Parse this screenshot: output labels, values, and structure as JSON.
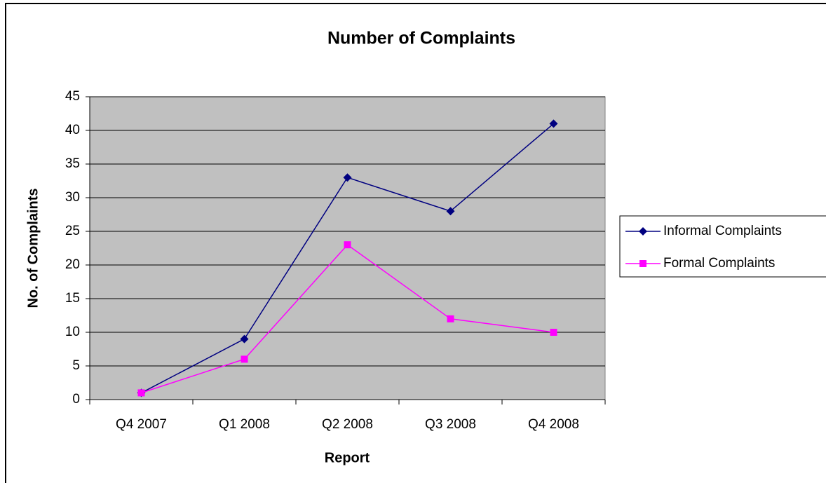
{
  "chart_data": {
    "type": "line",
    "title": "Number of Complaints",
    "x_label": "Report",
    "y_label": "No. of Complaints",
    "categories": [
      "Q4 2007",
      "Q1 2008",
      "Q2 2008",
      "Q3 2008",
      "Q4 2008"
    ],
    "series": [
      {
        "name": "Informal Complaints",
        "color": "#000080",
        "marker": "diamond",
        "values": [
          1,
          9,
          33,
          28,
          41
        ]
      },
      {
        "name": "Formal Complaints",
        "color": "#ff00ff",
        "marker": "square",
        "values": [
          1,
          6,
          23,
          12,
          10
        ]
      }
    ],
    "ylim": [
      0,
      45
    ],
    "yticks": [
      0,
      5,
      10,
      15,
      20,
      25,
      30,
      35,
      40,
      45
    ],
    "grid": true,
    "legend": "right",
    "plot_background": "#c0c0c0"
  }
}
